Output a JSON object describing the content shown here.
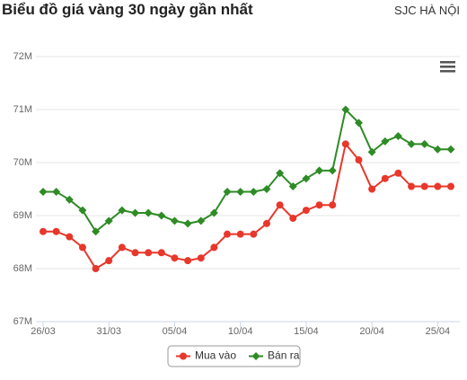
{
  "header": {
    "title": "Biểu đồ giá vàng 30 ngày gần nhất",
    "location": "SJC HÀ NỘI"
  },
  "chart_data": {
    "type": "line",
    "categories": [
      "26/03",
      null,
      null,
      null,
      null,
      "31/03",
      null,
      null,
      null,
      null,
      "05/04",
      null,
      null,
      null,
      null,
      "10/04",
      null,
      null,
      null,
      null,
      "15/04",
      null,
      null,
      null,
      null,
      "20/04",
      null,
      null,
      null,
      null,
      "25/04",
      null
    ],
    "series": [
      {
        "name": "Mua vào",
        "color": "#e8372b",
        "values": [
          68.7,
          68.7,
          68.6,
          68.4,
          68.0,
          68.15,
          68.4,
          68.3,
          68.3,
          68.3,
          68.2,
          68.15,
          68.2,
          68.4,
          68.65,
          68.65,
          68.65,
          68.85,
          69.2,
          68.95,
          69.1,
          69.2,
          69.2,
          70.35,
          70.05,
          69.5,
          69.7,
          69.8,
          69.55,
          69.55,
          69.55,
          69.55
        ]
      },
      {
        "name": "Bán ra",
        "color": "#2e8b25",
        "values": [
          69.45,
          69.45,
          69.3,
          69.1,
          68.7,
          68.9,
          69.1,
          69.05,
          69.05,
          69.0,
          68.9,
          68.85,
          68.9,
          69.05,
          69.45,
          69.45,
          69.45,
          69.5,
          69.8,
          69.55,
          69.7,
          69.85,
          69.85,
          71.0,
          70.75,
          70.2,
          70.4,
          70.5,
          70.35,
          70.35,
          70.25,
          70.25
        ]
      }
    ],
    "ylim": [
      67,
      72
    ],
    "yticks": [
      {
        "value": 67,
        "label": "67M"
      },
      {
        "value": 68,
        "label": "68M"
      },
      {
        "value": 69,
        "label": "69M"
      },
      {
        "value": 70,
        "label": "70M"
      },
      {
        "value": 71,
        "label": "71M"
      },
      {
        "value": 72,
        "label": "72M"
      }
    ],
    "grid": true
  }
}
